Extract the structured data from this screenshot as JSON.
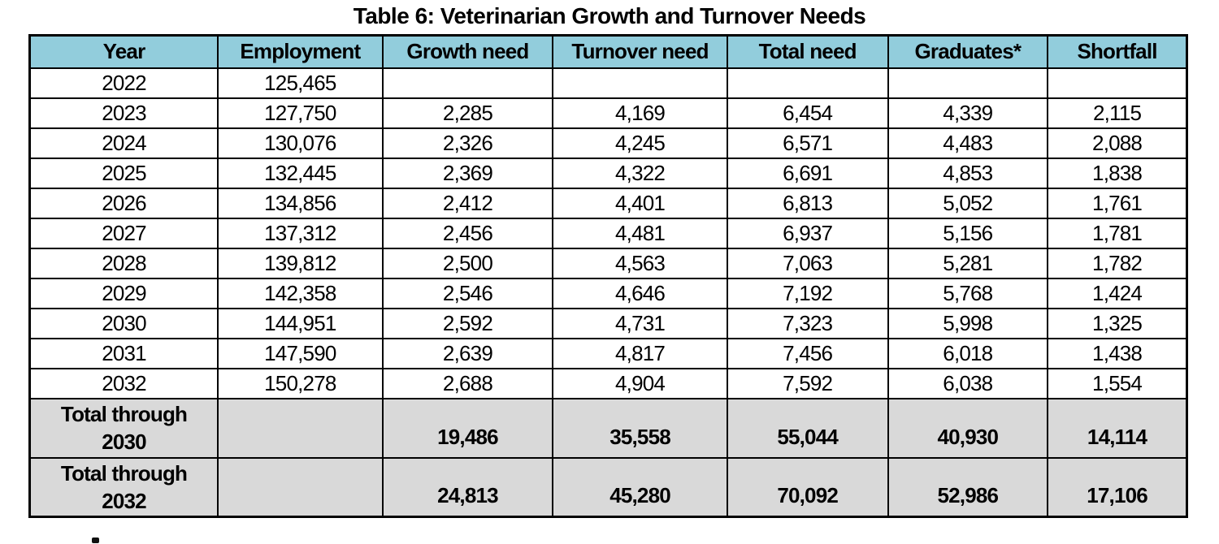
{
  "title": "Table 6: Veterinarian Growth and Turnover Needs",
  "colors": {
    "header_bg": "#92CDDC",
    "total_row_bg": "#D9D9D9",
    "border": "#000000",
    "text": "#000000"
  },
  "table": {
    "columns": [
      "Year",
      "Employment",
      "Growth need",
      "Turnover need",
      "Total need",
      "Graduates*",
      "Shortfall"
    ],
    "rows": [
      {
        "cells": [
          "2022",
          "125,465",
          "",
          "",
          "",
          "",
          ""
        ]
      },
      {
        "cells": [
          "2023",
          "127,750",
          "2,285",
          "4,169",
          "6,454",
          "4,339",
          "2,115"
        ]
      },
      {
        "cells": [
          "2024",
          "130,076",
          "2,326",
          "4,245",
          "6,571",
          "4,483",
          "2,088"
        ]
      },
      {
        "cells": [
          "2025",
          "132,445",
          "2,369",
          "4,322",
          "6,691",
          "4,853",
          "1,838"
        ]
      },
      {
        "cells": [
          "2026",
          "134,856",
          "2,412",
          "4,401",
          "6,813",
          "5,052",
          "1,761"
        ]
      },
      {
        "cells": [
          "2027",
          "137,312",
          "2,456",
          "4,481",
          "6,937",
          "5,156",
          "1,781"
        ]
      },
      {
        "cells": [
          "2028",
          "139,812",
          "2,500",
          "4,563",
          "7,063",
          "5,281",
          "1,782"
        ]
      },
      {
        "cells": [
          "2029",
          "142,358",
          "2,546",
          "4,646",
          "7,192",
          "5,768",
          "1,424"
        ]
      },
      {
        "cells": [
          "2030",
          "144,951",
          "2,592",
          "4,731",
          "7,323",
          "5,998",
          "1,325"
        ]
      },
      {
        "cells": [
          "2031",
          "147,590",
          "2,639",
          "4,817",
          "7,456",
          "6,018",
          "1,438"
        ]
      },
      {
        "cells": [
          "2032",
          "150,278",
          "2,688",
          "4,904",
          "7,592",
          "6,038",
          "1,554"
        ]
      }
    ],
    "total_rows": [
      {
        "label": [
          "Total through",
          "2030"
        ],
        "cells": [
          "",
          "19,486",
          "35,558",
          "55,044",
          "40,930",
          "14,114"
        ]
      },
      {
        "label": [
          "Total through",
          "2032"
        ],
        "cells": [
          "",
          "24,813",
          "45,280",
          "70,092",
          "52,986",
          "17,106"
        ]
      }
    ]
  },
  "footnote_marker": "*"
}
